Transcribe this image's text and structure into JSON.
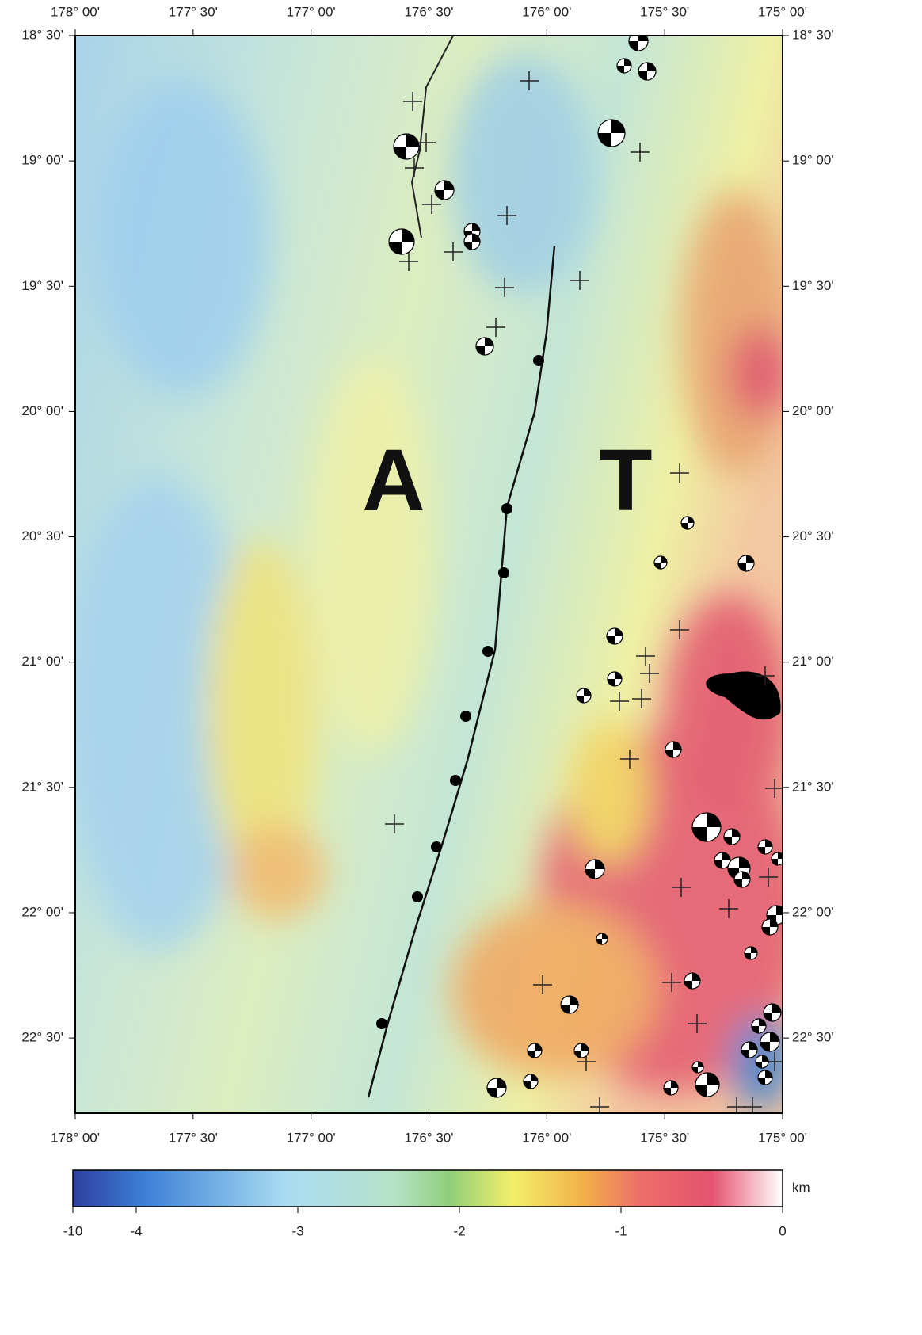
{
  "map": {
    "lon_range": [
      178,
      175
    ],
    "lat_range": [
      18.5,
      22.8
    ],
    "lon_ticks": [
      {
        "value": 178,
        "label": "178° 00'"
      },
      {
        "value": 177.5,
        "label": "177° 30'"
      },
      {
        "value": 177,
        "label": "177° 00'"
      },
      {
        "value": 176.5,
        "label": "176° 30'"
      },
      {
        "value": 176,
        "label": "176° 00'"
      },
      {
        "value": 175.5,
        "label": "175° 30'"
      },
      {
        "value": 175,
        "label": "175° 00'"
      }
    ],
    "lat_ticks": [
      {
        "value": 18.5,
        "label": "18° 30'"
      },
      {
        "value": 19,
        "label": "19° 00'"
      },
      {
        "value": 19.5,
        "label": "19° 30'"
      },
      {
        "value": 20,
        "label": "20° 00'"
      },
      {
        "value": 20.5,
        "label": "20° 30'"
      },
      {
        "value": 21,
        "label": "21° 00'"
      },
      {
        "value": 21.5,
        "label": "21° 30'"
      },
      {
        "value": 22,
        "label": "22° 00'"
      },
      {
        "value": 22.5,
        "label": "22° 30'"
      }
    ],
    "labels": [
      "A",
      "T"
    ]
  },
  "colorbar": {
    "ticks": [
      -10,
      -4,
      -3,
      -2,
      -1,
      0
    ],
    "unit": "km"
  }
}
